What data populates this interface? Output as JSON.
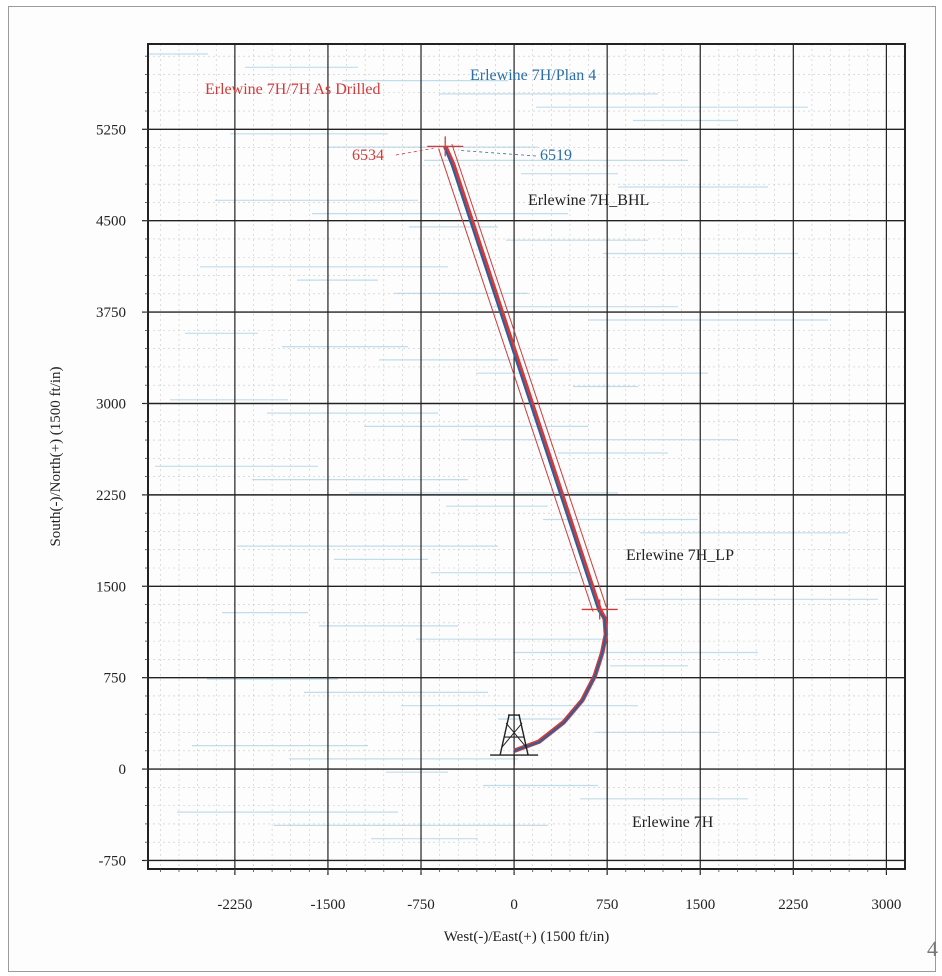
{
  "chart_data": {
    "type": "line",
    "title": "",
    "xlabel": "West(-)/East(+) (1500 ft/in)",
    "ylabel": "South(-)/North(+) (1500 ft/in)",
    "xlim": [
      -2950,
      3150
    ],
    "ylim": [
      -820,
      5950
    ],
    "x_ticks": [
      -2250,
      -1500,
      -750,
      0,
      750,
      1500,
      2250,
      3000
    ],
    "y_ticks": [
      -750,
      0,
      750,
      1500,
      2250,
      3000,
      3750,
      4500,
      5250
    ],
    "x_tick_labels": [
      "-2250",
      "-1500",
      "-750",
      "0",
      "750",
      "1500",
      "2250",
      "3000"
    ],
    "y_tick_labels": [
      "-750",
      "0",
      "750",
      "1500",
      "2250",
      "3000",
      "3750",
      "4500",
      "5250"
    ],
    "grid": true,
    "series": [
      {
        "name": "Erlewine 7H/Plan 4",
        "color": "#2b5f9e",
        "x": [
          0,
          200,
          400,
          550,
          650,
          710,
          740,
          730,
          680,
          -500,
          -560
        ],
        "y": [
          150,
          220,
          380,
          560,
          760,
          950,
          1100,
          1230,
          1300,
          4950,
          5100
        ]
      },
      {
        "name": "Erlewine 7H/7H As Drilled",
        "color": "#d23a3a",
        "x": [
          0,
          200,
          400,
          550,
          650,
          710,
          740,
          730,
          690,
          -490,
          -555
        ],
        "y": [
          150,
          225,
          385,
          565,
          765,
          955,
          1105,
          1235,
          1310,
          4960,
          5110
        ]
      }
    ],
    "annotations": [
      {
        "text": "Erlewine 7H/7H As Drilled",
        "color": "#d23a3a"
      },
      {
        "text": "Erlewine 7H/Plan 4",
        "color": "#2b6ea8"
      },
      {
        "text": "6534",
        "color": "#d23a3a"
      },
      {
        "text": "6519",
        "color": "#2b6ea8"
      },
      {
        "text": "Erlewine 7H_BHL",
        "color": "#222222"
      },
      {
        "text": "Erlewine 7H_LP",
        "color": "#222222"
      },
      {
        "text": "Erlewine 7H",
        "color": "#222222"
      }
    ]
  },
  "page_number": "4"
}
